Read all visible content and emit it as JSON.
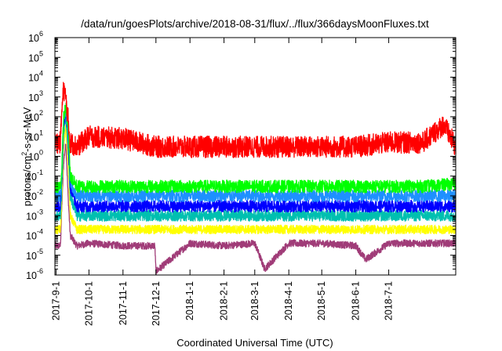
{
  "chart_data": {
    "type": "line",
    "title": "/data/run/goesPlots/archive/2018-08-31/flux/../flux/366daysMoonFluxes.txt",
    "xlabel": "Coordinated Universal Time (UTC)",
    "ylabel": {
      "prefix": "protons/cm",
      "sup": "2",
      "suffix": "-s-sr-MeV"
    },
    "y_scale": "log",
    "ylim": [
      1e-06,
      1000000.0
    ],
    "xlim": [
      "2017-08-31",
      "2018-08-31"
    ],
    "grid": false,
    "legend": "none",
    "y_ticks": [
      {
        "base": "10",
        "exp": "-6"
      },
      {
        "base": "10",
        "exp": "-5"
      },
      {
        "base": "10",
        "exp": "-4"
      },
      {
        "base": "10",
        "exp": "-3"
      },
      {
        "base": "10",
        "exp": "-2"
      },
      {
        "base": "10",
        "exp": "-1"
      },
      {
        "base": "10",
        "exp": "0"
      },
      {
        "base": "10",
        "exp": "1"
      },
      {
        "base": "10",
        "exp": "2"
      },
      {
        "base": "10",
        "exp": "3"
      },
      {
        "base": "10",
        "exp": "4"
      },
      {
        "base": "10",
        "exp": "5"
      },
      {
        "base": "10",
        "exp": "6"
      }
    ],
    "x_ticks": [
      {
        "date": "2017-09-01",
        "label": "2017-9-1"
      },
      {
        "date": "2017-10-01",
        "label": "2017-10-1"
      },
      {
        "date": "2017-11-01",
        "label": "2017-11-1"
      },
      {
        "date": "2017-12-01",
        "label": "2017-12-1"
      },
      {
        "date": "2018-01-01",
        "label": "2018-1-1"
      },
      {
        "date": "2018-02-01",
        "label": "2018-2-1"
      },
      {
        "date": "2018-03-01",
        "label": "2018-3-1"
      },
      {
        "date": "2018-04-01",
        "label": "2018-4-1"
      },
      {
        "date": "2018-05-01",
        "label": "2018-5-1"
      },
      {
        "date": "2018-06-01",
        "label": "2018-6-1"
      },
      {
        "date": "2018-07-01",
        "label": "2018-7-1"
      }
    ],
    "series": [
      {
        "color": "#a03c78",
        "x": [
          "2017-08-31",
          "2017-09-05",
          "2017-09-06",
          "2017-09-08",
          "2017-09-10",
          "2017-09-12",
          "2017-09-14",
          "2017-09-20",
          "2017-10-01",
          "2017-11-01",
          "2017-11-30",
          "2017-12-01",
          "2018-01-01",
          "2018-02-01",
          "2018-03-01",
          "2018-03-10",
          "2018-04-01",
          "2018-05-01",
          "2018-06-01",
          "2018-06-10",
          "2018-07-01",
          "2018-08-01",
          "2018-08-31"
        ],
        "y": [
          3e-05,
          3e-05,
          0.001,
          0.5,
          5,
          0.01,
          0.0001,
          3e-05,
          4e-05,
          3e-05,
          3e-05,
          1.5e-06,
          4e-05,
          3e-05,
          4e-05,
          2e-06,
          4e-05,
          4e-05,
          3e-05,
          6e-06,
          4e-05,
          4e-05,
          4e-05
        ]
      },
      {
        "color": "#ffff00",
        "x": [
          "2017-08-31",
          "2017-09-05",
          "2017-09-06",
          "2017-09-08",
          "2017-09-10",
          "2017-09-12",
          "2017-09-14",
          "2017-09-20",
          "2017-10-01",
          "2017-11-01",
          "2017-12-01",
          "2018-01-01",
          "2018-02-01",
          "2018-03-01",
          "2018-04-01",
          "2018-05-01",
          "2018-06-01",
          "2018-07-01",
          "2018-08-01",
          "2018-08-31"
        ],
        "y": [
          0.0002,
          0.0002,
          0.002,
          5,
          30,
          0.5,
          0.001,
          0.0002,
          0.0002,
          0.0002,
          0.0002,
          0.0002,
          0.0002,
          0.0002,
          0.0002,
          0.0002,
          0.0002,
          0.0002,
          0.0002,
          0.0002
        ]
      },
      {
        "color": "#00c0b0",
        "x": [
          "2017-08-31",
          "2017-09-05",
          "2017-09-06",
          "2017-09-08",
          "2017-09-10",
          "2017-09-12",
          "2017-09-14",
          "2017-09-20",
          "2017-10-01",
          "2017-11-01",
          "2017-12-01",
          "2018-01-01",
          "2018-02-01",
          "2018-03-01",
          "2018-04-01",
          "2018-05-01",
          "2018-06-01",
          "2018-07-01",
          "2018-08-01",
          "2018-08-31"
        ],
        "y": [
          0.001,
          0.001,
          0.01,
          20,
          100,
          3,
          0.01,
          0.001,
          0.001,
          0.001,
          0.001,
          0.001,
          0.001,
          0.001,
          0.001,
          0.001,
          0.001,
          0.001,
          0.001,
          0.001
        ]
      },
      {
        "color": "#0000ff",
        "x": [
          "2017-08-31",
          "2017-09-05",
          "2017-09-06",
          "2017-09-08",
          "2017-09-10",
          "2017-09-12",
          "2017-09-14",
          "2017-09-20",
          "2017-10-01",
          "2017-11-01",
          "2017-12-01",
          "2018-01-01",
          "2018-02-01",
          "2018-03-01",
          "2018-04-01",
          "2018-05-01",
          "2018-06-01",
          "2018-07-01",
          "2018-08-01",
          "2018-08-31"
        ],
        "y": [
          0.003,
          0.003,
          0.03,
          50,
          200,
          10,
          0.03,
          0.003,
          0.003,
          0.003,
          0.003,
          0.003,
          0.003,
          0.003,
          0.003,
          0.003,
          0.003,
          0.003,
          0.003,
          0.003
        ]
      },
      {
        "color": "#1e90ff",
        "x": [
          "2017-08-31",
          "2017-09-05",
          "2017-09-06",
          "2017-09-08",
          "2017-09-10",
          "2017-09-12",
          "2017-09-14",
          "2017-09-20",
          "2017-10-01",
          "2017-11-01",
          "2017-12-01",
          "2018-01-01",
          "2018-02-01",
          "2018-03-01",
          "2018-04-01",
          "2018-05-01",
          "2018-06-01",
          "2018-07-01",
          "2018-08-01",
          "2018-08-31"
        ],
        "y": [
          0.01,
          0.01,
          0.05,
          80,
          200,
          20,
          0.05,
          0.01,
          0.01,
          0.01,
          0.01,
          0.01,
          0.01,
          0.01,
          0.01,
          0.01,
          0.01,
          0.01,
          0.01,
          0.01
        ]
      },
      {
        "color": "#00ff00",
        "x": [
          "2017-08-31",
          "2017-09-05",
          "2017-09-06",
          "2017-09-08",
          "2017-09-10",
          "2017-09-12",
          "2017-09-14",
          "2017-09-20",
          "2017-10-01",
          "2017-11-01",
          "2017-12-01",
          "2018-01-01",
          "2018-02-01",
          "2018-03-01",
          "2018-04-01",
          "2018-05-01",
          "2018-06-01",
          "2018-07-01",
          "2018-08-01",
          "2018-08-31"
        ],
        "y": [
          0.03,
          0.03,
          0.1,
          100,
          300,
          30,
          0.1,
          0.03,
          0.03,
          0.03,
          0.03,
          0.03,
          0.03,
          0.03,
          0.03,
          0.03,
          0.03,
          0.03,
          0.03,
          0.04
        ]
      },
      {
        "color": "#ff0000",
        "x": [
          "2017-08-31",
          "2017-09-05",
          "2017-09-06",
          "2017-09-08",
          "2017-09-10",
          "2017-09-12",
          "2017-09-14",
          "2017-09-20",
          "2017-10-01",
          "2017-11-01",
          "2017-12-01",
          "2018-01-01",
          "2018-02-01",
          "2018-03-01",
          "2018-04-01",
          "2018-05-01",
          "2018-06-01",
          "2018-07-01",
          "2018-08-01",
          "2018-08-20",
          "2018-08-31"
        ],
        "y": [
          5,
          5,
          100,
          3000,
          800,
          80,
          5,
          3,
          10,
          8,
          3,
          3,
          3,
          3,
          3,
          3,
          3,
          5,
          5,
          40,
          3
        ]
      }
    ]
  }
}
